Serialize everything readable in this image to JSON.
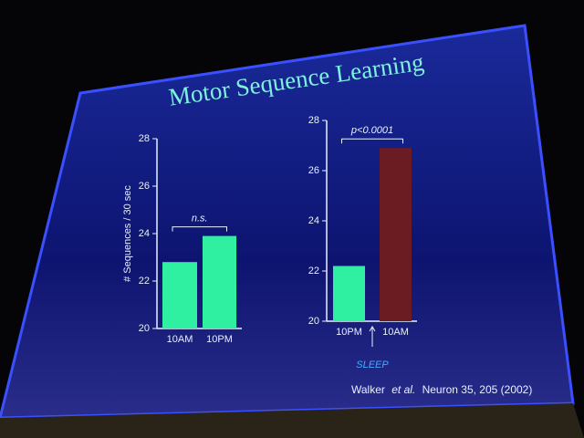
{
  "title": "Motor Sequence Learning",
  "citation": {
    "author": "Walker",
    "etal": "et al.",
    "journal": "Neuron 35, 205 (2002)"
  },
  "chart_data": [
    {
      "type": "bar",
      "ylabel": "# Sequences / 30 sec",
      "categories": [
        "10AM",
        "10PM"
      ],
      "values": [
        22.8,
        23.9
      ],
      "colors": [
        "#2ef0a0",
        "#2ef0a0"
      ],
      "ylim": [
        20,
        28
      ],
      "yticks": [
        20,
        22,
        24,
        26,
        28
      ],
      "annotation": "n.s."
    },
    {
      "type": "bar",
      "categories": [
        "10PM",
        "10AM"
      ],
      "values": [
        22.2,
        26.9
      ],
      "colors": [
        "#2ef0a0",
        "#6a1c22"
      ],
      "ylim": [
        20,
        28
      ],
      "yticks": [
        20,
        22,
        24,
        26,
        28
      ],
      "annotation": "p<0.0001",
      "note": "SLEEP"
    }
  ]
}
